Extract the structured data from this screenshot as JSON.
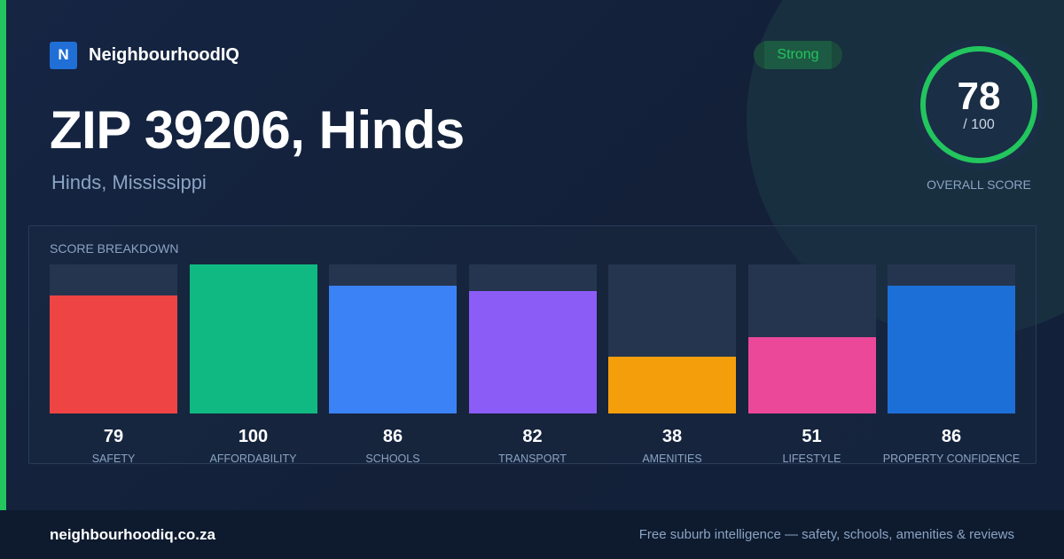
{
  "brand": {
    "logo_letter": "N",
    "name": "NeighbourhoodIQ"
  },
  "header": {
    "title": "ZIP 39206, Hinds",
    "subtitle": "Hinds, Mississippi"
  },
  "rating": {
    "badge": "Strong",
    "badge_color": "#22c55e"
  },
  "overall": {
    "score": "78",
    "max": "/ 100",
    "label": "OVERALL SCORE",
    "fraction": 0.78,
    "ring_color": "#22c55e"
  },
  "breakdown": {
    "title": "SCORE BREAKDOWN",
    "items": [
      {
        "label": "SAFETY",
        "value": "79",
        "score": 79,
        "color": "#ef4444"
      },
      {
        "label": "AFFORDABILITY",
        "value": "100",
        "score": 100,
        "color": "#10b981"
      },
      {
        "label": "SCHOOLS",
        "value": "86",
        "score": 86,
        "color": "#3b82f6"
      },
      {
        "label": "TRANSPORT",
        "value": "82",
        "score": 82,
        "color": "#8b5cf6"
      },
      {
        "label": "AMENITIES",
        "value": "38",
        "score": 38,
        "color": "#f59e0b"
      },
      {
        "label": "LIFESTYLE",
        "value": "51",
        "score": 51,
        "color": "#ec4899"
      },
      {
        "label": "PROPERTY CONFIDENCE",
        "value": "86",
        "score": 86,
        "color": "#1d6fd8"
      }
    ]
  },
  "footer": {
    "site": "neighbourhoodiq.co.za",
    "tagline": "Free suburb intelligence — safety, schools, amenities & reviews"
  }
}
